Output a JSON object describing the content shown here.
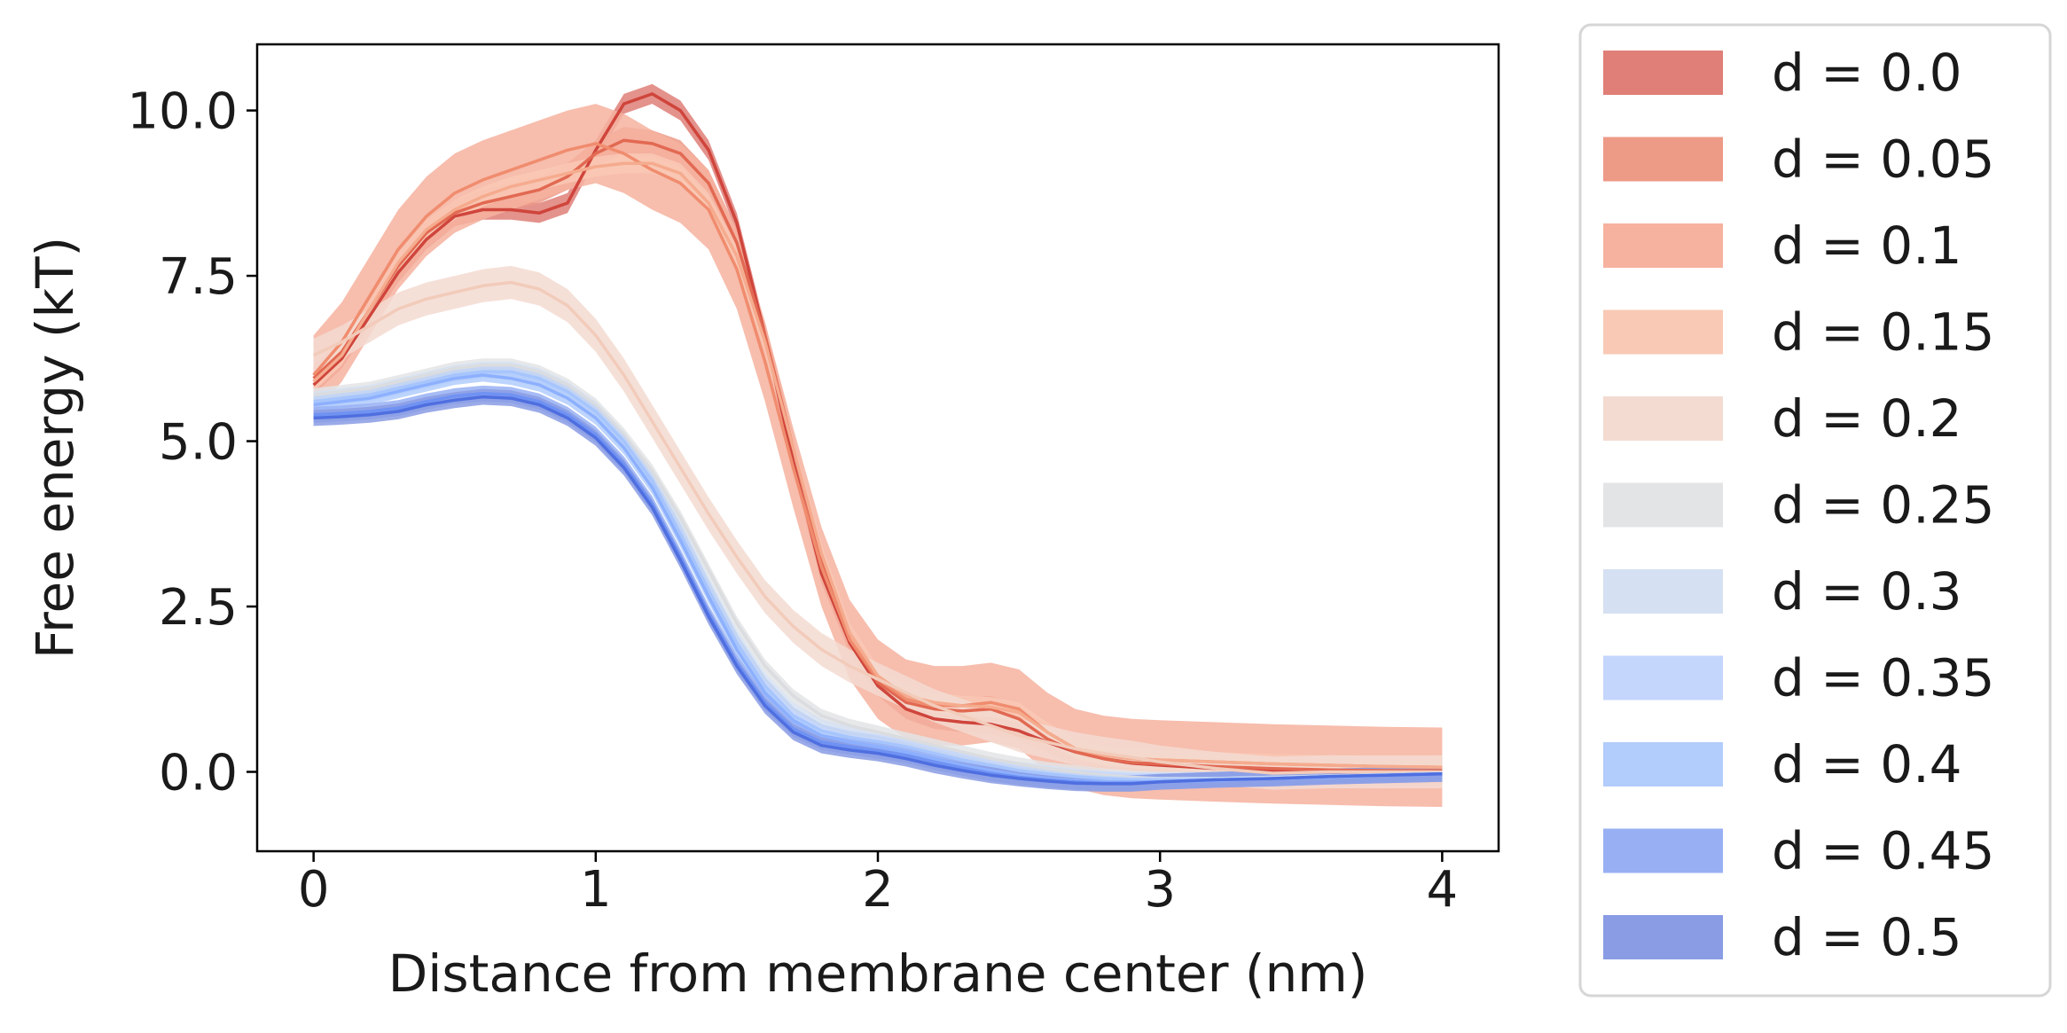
{
  "chart_data": {
    "type": "line",
    "title": "",
    "xlabel": "Distance from membrane center (nm)",
    "ylabel": "Free energy (kT)",
    "xlim": [
      -0.2,
      4.2
    ],
    "ylim": [
      -1.2,
      11.0
    ],
    "xticks": [
      0,
      1,
      2,
      3,
      4
    ],
    "xtick_labels": [
      "0",
      "1",
      "2",
      "3",
      "4"
    ],
    "yticks": [
      0.0,
      2.5,
      5.0,
      7.5,
      10.0
    ],
    "ytick_labels": [
      "0.0",
      "2.5",
      "5.0",
      "7.5",
      "10.0"
    ],
    "grid": false,
    "legend_placement": "outside-right",
    "x": [
      0,
      0.1,
      0.2,
      0.3,
      0.4,
      0.5,
      0.6,
      0.7,
      0.8,
      0.9,
      1.0,
      1.1,
      1.2,
      1.3,
      1.4,
      1.5,
      1.6,
      1.7,
      1.8,
      1.9,
      2.0,
      2.1,
      2.2,
      2.3,
      2.4,
      2.5,
      2.6,
      2.7,
      2.8,
      2.9,
      3.0,
      3.2,
      3.4,
      3.6,
      3.8,
      4.0
    ],
    "series": [
      {
        "name": "d = 0.0",
        "color": "#cf453c",
        "band_color": "#df7f78",
        "band": 0.15,
        "values": [
          5.85,
          6.25,
          6.9,
          7.55,
          8.05,
          8.4,
          8.5,
          8.5,
          8.45,
          8.6,
          9.4,
          10.1,
          10.25,
          10.0,
          9.4,
          8.3,
          6.6,
          4.7,
          3.0,
          1.95,
          1.3,
          0.95,
          0.8,
          0.75,
          0.72,
          0.62,
          0.45,
          0.3,
          0.2,
          0.13,
          0.1,
          0.05,
          0.02,
          0.0,
          0.0,
          0.0
        ]
      },
      {
        "name": "d = 0.05",
        "color": "#e26952",
        "band_color": "#ed9a87",
        "band": 0.2,
        "values": [
          5.95,
          6.35,
          7.0,
          7.65,
          8.15,
          8.45,
          8.6,
          8.7,
          8.8,
          9.0,
          9.35,
          9.55,
          9.5,
          9.35,
          8.9,
          8.0,
          6.6,
          4.9,
          3.2,
          2.0,
          1.35,
          1.05,
          0.95,
          0.92,
          0.95,
          0.8,
          0.5,
          0.3,
          0.2,
          0.14,
          0.12,
          0.08,
          0.05,
          0.03,
          0.02,
          0.02
        ]
      },
      {
        "name": "d = 0.1",
        "color": "#f08c6e",
        "band_color": "#f6b29f",
        "band": 0.6,
        "values": [
          6.0,
          6.5,
          7.2,
          7.9,
          8.4,
          8.75,
          8.95,
          9.1,
          9.25,
          9.4,
          9.5,
          9.35,
          9.1,
          8.9,
          8.5,
          7.6,
          6.2,
          4.6,
          3.1,
          2.0,
          1.4,
          1.1,
          1.0,
          1.0,
          1.05,
          0.95,
          0.6,
          0.35,
          0.25,
          0.2,
          0.18,
          0.15,
          0.12,
          0.1,
          0.08,
          0.07
        ]
      },
      {
        "name": "d = 0.15",
        "color": "#f5ab8e",
        "band_color": "#f9c9b5",
        "band": 0.15,
        "values": [
          5.9,
          6.3,
          7.0,
          7.7,
          8.2,
          8.5,
          8.7,
          8.85,
          8.95,
          9.05,
          9.15,
          9.2,
          9.2,
          9.05,
          8.6,
          7.8,
          6.5,
          4.9,
          3.3,
          2.1,
          1.45,
          1.15,
          1.05,
          1.0,
          0.98,
          0.9,
          0.6,
          0.35,
          0.25,
          0.2,
          0.18,
          0.15,
          0.12,
          0.1,
          0.08,
          0.07
        ]
      },
      {
        "name": "d = 0.2",
        "color": "#f2cbba",
        "band_color": "#f3dbd1",
        "band": 0.25,
        "values": [
          6.3,
          6.5,
          6.75,
          7.0,
          7.15,
          7.25,
          7.35,
          7.4,
          7.3,
          7.05,
          6.6,
          6.0,
          5.3,
          4.6,
          3.9,
          3.25,
          2.65,
          2.2,
          1.85,
          1.6,
          1.4,
          1.2,
          1.0,
          0.85,
          0.7,
          0.55,
          0.45,
          0.35,
          0.28,
          0.22,
          0.15,
          0.05,
          -0.02,
          0.0,
          0.0,
          0.0
        ]
      },
      {
        "name": "d = 0.25",
        "color": "#dadcdf",
        "band_color": "#e3e4e5",
        "band": 0.1,
        "values": [
          5.7,
          5.75,
          5.8,
          5.9,
          6.0,
          6.1,
          6.15,
          6.15,
          6.05,
          5.85,
          5.55,
          5.1,
          4.55,
          3.85,
          3.05,
          2.25,
          1.6,
          1.15,
          0.85,
          0.7,
          0.6,
          0.5,
          0.4,
          0.3,
          0.2,
          0.12,
          0.05,
          0.0,
          -0.05,
          -0.08,
          -0.1,
          -0.1,
          -0.08,
          -0.06,
          -0.04,
          -0.02
        ]
      },
      {
        "name": "d = 0.3",
        "color": "#c4d5f3",
        "band_color": "#d5e0f2",
        "band": 0.1,
        "values": [
          5.65,
          5.7,
          5.75,
          5.85,
          5.95,
          6.05,
          6.1,
          6.1,
          6.0,
          5.8,
          5.5,
          5.05,
          4.45,
          3.7,
          2.85,
          2.05,
          1.4,
          0.95,
          0.7,
          0.58,
          0.52,
          0.42,
          0.32,
          0.22,
          0.12,
          0.05,
          0.0,
          -0.05,
          -0.08,
          -0.1,
          -0.1,
          -0.1,
          -0.08,
          -0.06,
          -0.04,
          -0.02
        ]
      },
      {
        "name": "d = 0.35",
        "color": "#a7c5fd",
        "band_color": "#c5d6fc",
        "band": 0.1,
        "values": [
          5.6,
          5.65,
          5.7,
          5.8,
          5.9,
          6.0,
          6.05,
          6.05,
          5.95,
          5.75,
          5.45,
          5.0,
          4.4,
          3.6,
          2.75,
          1.95,
          1.3,
          0.85,
          0.62,
          0.52,
          0.46,
          0.38,
          0.28,
          0.18,
          0.1,
          0.02,
          -0.03,
          -0.07,
          -0.1,
          -0.12,
          -0.12,
          -0.12,
          -0.1,
          -0.08,
          -0.05,
          -0.03
        ]
      },
      {
        "name": "d = 0.4",
        "color": "#8db0fe",
        "band_color": "#b2ccfb",
        "band": 0.1,
        "values": [
          5.55,
          5.6,
          5.65,
          5.75,
          5.85,
          5.95,
          6.0,
          5.95,
          5.85,
          5.65,
          5.35,
          4.9,
          4.3,
          3.5,
          2.65,
          1.85,
          1.2,
          0.78,
          0.55,
          0.45,
          0.38,
          0.3,
          0.2,
          0.1,
          0.02,
          -0.05,
          -0.1,
          -0.13,
          -0.15,
          -0.15,
          -0.15,
          -0.13,
          -0.1,
          -0.08,
          -0.05,
          -0.03
        ]
      },
      {
        "name": "d = 0.45",
        "color": "#6f92f3",
        "band_color": "#98b0f3",
        "band": 0.12,
        "values": [
          5.4,
          5.42,
          5.45,
          5.5,
          5.6,
          5.68,
          5.72,
          5.7,
          5.6,
          5.4,
          5.1,
          4.65,
          4.05,
          3.25,
          2.4,
          1.65,
          1.05,
          0.65,
          0.45,
          0.38,
          0.32,
          0.25,
          0.15,
          0.06,
          -0.02,
          -0.08,
          -0.12,
          -0.15,
          -0.17,
          -0.17,
          -0.15,
          -0.12,
          -0.1,
          -0.07,
          -0.05,
          -0.03
        ]
      },
      {
        "name": "d = 0.5",
        "color": "#4f6fe0",
        "band_color": "#899ce4",
        "band": 0.12,
        "values": [
          5.35,
          5.37,
          5.4,
          5.45,
          5.55,
          5.62,
          5.67,
          5.65,
          5.55,
          5.35,
          5.05,
          4.6,
          4.0,
          3.2,
          2.35,
          1.6,
          1.0,
          0.6,
          0.4,
          0.33,
          0.28,
          0.2,
          0.1,
          0.02,
          -0.05,
          -0.1,
          -0.14,
          -0.17,
          -0.18,
          -0.18,
          -0.15,
          -0.12,
          -0.1,
          -0.07,
          -0.05,
          -0.03
        ]
      }
    ],
    "legend_entries": [
      {
        "label": "d = 0.0",
        "color": "#df7f78"
      },
      {
        "label": "d = 0.05",
        "color": "#ed9a87"
      },
      {
        "label": "d = 0.1",
        "color": "#f6b29f"
      },
      {
        "label": "d = 0.15",
        "color": "#f9c9b5"
      },
      {
        "label": "d = 0.2",
        "color": "#f3dbd1"
      },
      {
        "label": "d = 0.25",
        "color": "#e3e4e5"
      },
      {
        "label": "d = 0.3",
        "color": "#d5e0f2"
      },
      {
        "label": "d = 0.35",
        "color": "#c5d6fc"
      },
      {
        "label": "d = 0.4",
        "color": "#b2ccfb"
      },
      {
        "label": "d = 0.45",
        "color": "#98b0f3"
      },
      {
        "label": "d = 0.5",
        "color": "#899ce4"
      }
    ]
  }
}
